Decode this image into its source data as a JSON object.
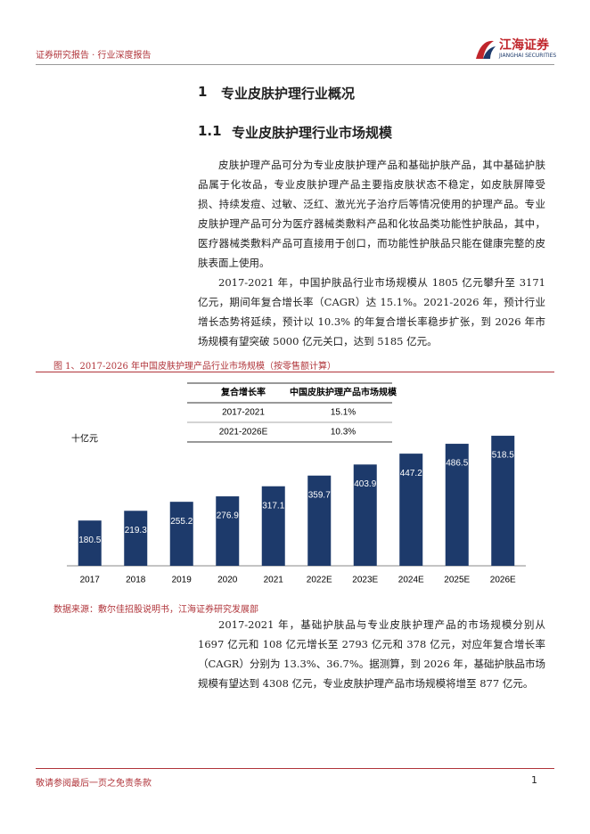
{
  "header": {
    "left": "证券研究报告 · 行业深度报告",
    "logo_cn": "江海证券",
    "logo_en": "JIANGHAI SECURITIES"
  },
  "section": {
    "number": "1",
    "title": "专业皮肤护理行业概况"
  },
  "subsection": {
    "number": "1.1",
    "title": "专业皮肤护理行业市场规模"
  },
  "paragraphs": [
    "皮肤护理产品可分为专业皮肤护理产品和基础护肤产品，其中基础护肤品属于化妆品，专业皮肤护理产品主要指皮肤状态不稳定，如皮肤屏障受损、持续发痘、过敏、泛红、激光光子治疗后等情况使用的护理产品。专业皮肤护理产品可分为医疗器械类敷料产品和化妆品类功能性护肤品，其中，医疗器械类敷料产品可直接用于创口，而功能性护肤品只能在健康完整的皮肤表面上使用。",
    "2017-2021 年，中国护肤品行业市场规模从 1805 亿元攀升至 3171 亿元，期间年复合增长率（CAGR）达 15.1%。2021-2026 年，预计行业增长态势将延续，预计以 10.3% 的年复合增长率稳步扩张，到 2026 年市场规模有望突破 5000 亿元关口，达到 5185 亿元。",
    "2017-2021 年，基础护肤品与专业皮肤护理产品的市场规模分别从 1697 亿元和 108 亿元增长至 2793 亿元和 378 亿元，对应年复合增长率（CAGR）分别为 13.3%、36.7%。据测算，到 2026 年，基础护肤品市场规模有望达到 4308 亿元，专业皮肤护理产品市场规模将增至 877 亿元。"
  ],
  "figure": {
    "caption": "图 1、2017-2026 年中国皮肤护理产品行业市场规模（按零售额计算）",
    "source": "数据来源：敷尔佳招股说明书，江海证券研究发展部"
  },
  "table": {
    "header": [
      "复合增长率",
      "中国皮肤护理产品市场规模"
    ],
    "rows": [
      [
        "2017-2021",
        "15.1%"
      ],
      [
        "2021-2026E",
        "10.3%"
      ]
    ]
  },
  "chart_data": {
    "type": "bar",
    "y_label": "十亿元",
    "categories": [
      "2017",
      "2018",
      "2019",
      "2020",
      "2021",
      "2022E",
      "2023E",
      "2024E",
      "2025E",
      "2026E"
    ],
    "values": [
      180.5,
      219.3,
      255.2,
      276.9,
      317.1,
      359.7,
      403.9,
      447.2,
      486.5,
      518.5
    ],
    "color": "#1d3a6b",
    "ylim": [
      0,
      540
    ]
  },
  "footer": {
    "disclaimer": "敬请参阅最后一页之免责条款",
    "page": "1"
  }
}
